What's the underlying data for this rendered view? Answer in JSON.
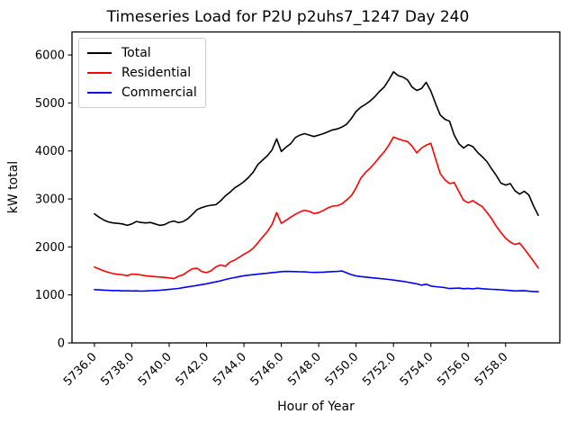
{
  "title": "Timeseries Load for P2U p2uhs7_1247  Day 240",
  "chart_data": {
    "type": "line",
    "title": "Timeseries Load for P2U p2uhs7_1247  Day 240",
    "xlabel": "Hour of Year",
    "ylabel": "kW total",
    "xlim": [
      5734.8,
      5760.9
    ],
    "ylim": [
      0,
      6480
    ],
    "grid": false,
    "legend_position": "upper-left",
    "xticks": [
      5736,
      5738,
      5740,
      5742,
      5744,
      5746,
      5748,
      5750,
      5752,
      5754,
      5756,
      5758
    ],
    "xtick_labels": [
      "5736.0",
      "5738.0",
      "5740.0",
      "5742.0",
      "5744.0",
      "5746.0",
      "5748.0",
      "5750.0",
      "5752.0",
      "5754.0",
      "5756.0",
      "5758.0"
    ],
    "yticks": [
      0,
      1000,
      2000,
      3000,
      4000,
      5000,
      6000
    ],
    "ytick_labels": [
      "0",
      "1000",
      "2000",
      "3000",
      "4000",
      "5000",
      "6000"
    ],
    "x_start": 5736.0,
    "x_step": 0.25,
    "series": [
      {
        "name": "Total",
        "color": "#000000",
        "values": [
          2690,
          2620,
          2560,
          2520,
          2500,
          2490,
          2480,
          2450,
          2480,
          2530,
          2510,
          2500,
          2510,
          2480,
          2450,
          2465,
          2515,
          2540,
          2505,
          2530,
          2590,
          2680,
          2780,
          2820,
          2850,
          2870,
          2880,
          2960,
          3060,
          3140,
          3230,
          3290,
          3360,
          3450,
          3560,
          3720,
          3810,
          3900,
          4020,
          4250,
          3990,
          4080,
          4150,
          4280,
          4330,
          4360,
          4330,
          4300,
          4330,
          4360,
          4400,
          4440,
          4460,
          4500,
          4560,
          4680,
          4820,
          4910,
          4970,
          5040,
          5130,
          5240,
          5330,
          5480,
          5650,
          5570,
          5540,
          5480,
          5330,
          5260,
          5300,
          5430,
          5250,
          4990,
          4750,
          4660,
          4620,
          4330,
          4150,
          4060,
          4130,
          4090,
          3970,
          3880,
          3780,
          3630,
          3490,
          3330,
          3290,
          3320,
          3170,
          3100,
          3160,
          3080,
          2850,
          2660
        ]
      },
      {
        "name": "Residential",
        "color": "#ff0000",
        "values": [
          1580,
          1540,
          1500,
          1470,
          1445,
          1430,
          1420,
          1400,
          1435,
          1430,
          1415,
          1400,
          1390,
          1380,
          1372,
          1365,
          1355,
          1340,
          1390,
          1420,
          1490,
          1545,
          1555,
          1485,
          1465,
          1505,
          1585,
          1625,
          1595,
          1685,
          1725,
          1785,
          1845,
          1900,
          1975,
          2085,
          2205,
          2320,
          2465,
          2715,
          2490,
          2555,
          2620,
          2680,
          2730,
          2765,
          2740,
          2695,
          2715,
          2760,
          2815,
          2850,
          2860,
          2900,
          2980,
          3070,
          3230,
          3430,
          3550,
          3640,
          3750,
          3870,
          3980,
          4120,
          4290,
          4250,
          4220,
          4195,
          4100,
          3960,
          4060,
          4120,
          4160,
          3840,
          3530,
          3400,
          3320,
          3340,
          3150,
          2970,
          2920,
          2965,
          2900,
          2840,
          2720,
          2590,
          2430,
          2300,
          2180,
          2100,
          2050,
          2080,
          1960,
          1830,
          1700,
          1560
        ]
      },
      {
        "name": "Commercial",
        "color": "#0000ff",
        "values": [
          1110,
          1105,
          1100,
          1095,
          1090,
          1092,
          1085,
          1088,
          1082,
          1085,
          1078,
          1082,
          1088,
          1092,
          1098,
          1105,
          1115,
          1125,
          1135,
          1152,
          1168,
          1182,
          1198,
          1215,
          1232,
          1252,
          1272,
          1295,
          1320,
          1342,
          1362,
          1382,
          1400,
          1412,
          1422,
          1432,
          1442,
          1452,
          1465,
          1475,
          1485,
          1490,
          1488,
          1485,
          1482,
          1480,
          1472,
          1468,
          1470,
          1475,
          1480,
          1485,
          1490,
          1498,
          1460,
          1422,
          1395,
          1382,
          1372,
          1362,
          1352,
          1342,
          1332,
          1322,
          1310,
          1296,
          1282,
          1266,
          1250,
          1230,
          1205,
          1222,
          1185,
          1172,
          1162,
          1152,
          1132,
          1138,
          1142,
          1130,
          1136,
          1126,
          1140,
          1130,
          1122,
          1116,
          1112,
          1106,
          1100,
          1092,
          1082,
          1086,
          1090,
          1076,
          1070,
          1068
        ]
      }
    ]
  }
}
